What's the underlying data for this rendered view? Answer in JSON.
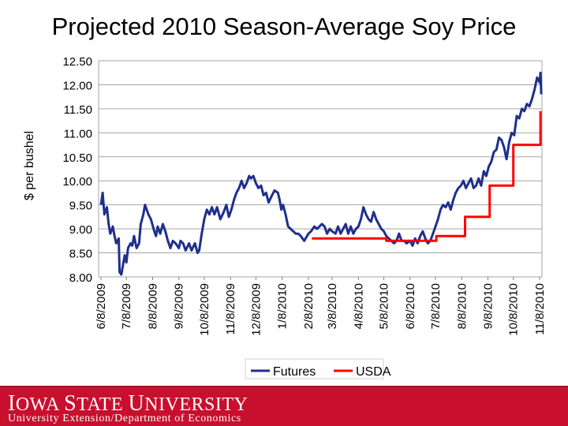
{
  "slide": {
    "title": "Projected 2010 Season-Average Soy Price",
    "footer_logo_word1_cap": "I",
    "footer_logo_word1_rest": "OWA",
    "footer_logo_word2_cap": "S",
    "footer_logo_word2_rest": "TATE",
    "footer_logo_word3_cap": "U",
    "footer_logo_word3_rest": "NIVERSITY",
    "footer_subtitle": "University Extension/Department of Economics",
    "footer_color": "#c8102e"
  },
  "chart_data": {
    "type": "line",
    "title": "Projected 2010 Season-Average Soy Price",
    "ylabel": "$ per bushel",
    "xlabel": "",
    "ylim": [
      8.0,
      12.5
    ],
    "yticks": [
      "8.00",
      "8.50",
      "9.00",
      "9.50",
      "10.00",
      "10.50",
      "11.00",
      "11.50",
      "12.00",
      "12.50"
    ],
    "xticks": [
      "6/8/2009",
      "7/8/2009",
      "8/8/2009",
      "9/8/2009",
      "10/8/2009",
      "11/8/2009",
      "12/8/2009",
      "1/8/2010",
      "2/8/2010",
      "3/8/2010",
      "4/8/2010",
      "5/8/2010",
      "6/8/2010",
      "7/8/2010",
      "8/8/2010",
      "9/8/2010",
      "10/8/2010",
      "11/8/2010"
    ],
    "grid": true,
    "legend_position": "bottom",
    "series": [
      {
        "name": "Futures",
        "color": "#1f2f8c",
        "points": [
          [
            "6/8/2009",
            9.5
          ],
          [
            "6/10/2009",
            9.75
          ],
          [
            "6/12/2009",
            9.3
          ],
          [
            "6/15/2009",
            9.45
          ],
          [
            "6/17/2009",
            9.1
          ],
          [
            "6/19/2009",
            8.9
          ],
          [
            "6/22/2009",
            9.05
          ],
          [
            "6/24/2009",
            8.85
          ],
          [
            "6/26/2009",
            8.7
          ],
          [
            "6/29/2009",
            8.8
          ],
          [
            "6/30/2009",
            8.1
          ],
          [
            "7/2/2009",
            8.05
          ],
          [
            "7/6/2009",
            8.45
          ],
          [
            "7/8/2009",
            8.3
          ],
          [
            "7/10/2009",
            8.6
          ],
          [
            "7/13/2009",
            8.7
          ],
          [
            "7/15/2009",
            8.65
          ],
          [
            "7/17/2009",
            8.85
          ],
          [
            "7/20/2009",
            8.6
          ],
          [
            "7/23/2009",
            8.7
          ],
          [
            "7/25/2009",
            9.1
          ],
          [
            "7/28/2009",
            9.3
          ],
          [
            "7/30/2009",
            9.5
          ],
          [
            "8/3/2009",
            9.3
          ],
          [
            "8/6/2009",
            9.2
          ],
          [
            "8/10/2009",
            8.95
          ],
          [
            "8/12/2009",
            8.85
          ],
          [
            "8/14/2009",
            9.05
          ],
          [
            "8/17/2009",
            8.9
          ],
          [
            "8/20/2009",
            9.1
          ],
          [
            "8/23/2009",
            8.95
          ],
          [
            "8/26/2009",
            8.75
          ],
          [
            "8/29/2009",
            8.6
          ],
          [
            "9/1/2009",
            8.75
          ],
          [
            "9/4/2009",
            8.7
          ],
          [
            "9/8/2009",
            8.6
          ],
          [
            "9/10/2009",
            8.75
          ],
          [
            "9/13/2009",
            8.7
          ],
          [
            "9/16/2009",
            8.55
          ],
          [
            "9/20/2009",
            8.7
          ],
          [
            "9/23/2009",
            8.55
          ],
          [
            "9/27/2009",
            8.7
          ],
          [
            "9/30/2009",
            8.5
          ],
          [
            "10/2/2009",
            8.55
          ],
          [
            "10/5/2009",
            8.9
          ],
          [
            "10/8/2009",
            9.2
          ],
          [
            "10/11/2009",
            9.4
          ],
          [
            "10/14/2009",
            9.3
          ],
          [
            "10/17/2009",
            9.45
          ],
          [
            "10/20/2009",
            9.3
          ],
          [
            "10/23/2009",
            9.45
          ],
          [
            "10/27/2009",
            9.2
          ],
          [
            "10/31/2009",
            9.35
          ],
          [
            "11/3/2009",
            9.5
          ],
          [
            "11/6/2009",
            9.25
          ],
          [
            "11/9/2009",
            9.4
          ],
          [
            "11/12/2009",
            9.6
          ],
          [
            "11/15/2009",
            9.75
          ],
          [
            "11/18/2009",
            9.85
          ],
          [
            "11/21/2009",
            10.0
          ],
          [
            "11/24/2009",
            9.85
          ],
          [
            "11/27/2009",
            9.95
          ],
          [
            "11/30/2009",
            10.1
          ],
          [
            "12/2/2009",
            10.05
          ],
          [
            "12/5/2009",
            10.1
          ],
          [
            "12/8/2009",
            9.95
          ],
          [
            "12/11/2009",
            9.85
          ],
          [
            "12/14/2009",
            9.9
          ],
          [
            "12/17/2009",
            9.7
          ],
          [
            "12/20/2009",
            9.75
          ],
          [
            "12/23/2009",
            9.55
          ],
          [
            "12/27/2009",
            9.7
          ],
          [
            "12/30/2009",
            9.8
          ],
          [
            "1/3/2010",
            9.75
          ],
          [
            "1/5/2010",
            9.6
          ],
          [
            "1/7/2010",
            9.4
          ],
          [
            "1/9/2010",
            9.5
          ],
          [
            "1/12/2010",
            9.3
          ],
          [
            "1/15/2010",
            9.05
          ],
          [
            "1/18/2010",
            9.0
          ],
          [
            "1/21/2010",
            8.95
          ],
          [
            "1/24/2010",
            8.9
          ],
          [
            "1/27/2010",
            8.9
          ],
          [
            "1/30/2010",
            8.85
          ],
          [
            "2/3/2010",
            8.75
          ],
          [
            "2/8/2010",
            8.9
          ],
          [
            "2/11/2010",
            8.95
          ],
          [
            "2/15/2010",
            9.05
          ],
          [
            "2/18/2010",
            9.0
          ],
          [
            "2/21/2010",
            9.05
          ],
          [
            "2/24/2010",
            9.1
          ],
          [
            "2/27/2010",
            9.05
          ],
          [
            "3/2/2010",
            8.9
          ],
          [
            "3/5/2010",
            9.0
          ],
          [
            "3/8/2010",
            8.95
          ],
          [
            "3/12/2010",
            8.9
          ],
          [
            "3/15/2010",
            9.05
          ],
          [
            "3/18/2010",
            8.9
          ],
          [
            "3/21/2010",
            9.0
          ],
          [
            "3/24/2010",
            9.1
          ],
          [
            "3/27/2010",
            8.9
          ],
          [
            "3/30/2010",
            9.05
          ],
          [
            "4/2/2010",
            8.9
          ],
          [
            "4/5/2010",
            9.0
          ],
          [
            "4/8/2010",
            9.05
          ],
          [
            "4/11/2010",
            9.2
          ],
          [
            "4/14/2010",
            9.45
          ],
          [
            "4/17/2010",
            9.3
          ],
          [
            "4/20/2010",
            9.2
          ],
          [
            "4/23/2010",
            9.15
          ],
          [
            "4/26/2010",
            9.35
          ],
          [
            "4/29/2010",
            9.2
          ],
          [
            "5/2/2010",
            9.1
          ],
          [
            "5/5/2010",
            9.0
          ],
          [
            "5/8/2010",
            8.95
          ],
          [
            "5/11/2010",
            8.85
          ],
          [
            "5/14/2010",
            8.8
          ],
          [
            "5/17/2010",
            8.75
          ],
          [
            "5/20/2010",
            8.7
          ],
          [
            "5/23/2010",
            8.75
          ],
          [
            "5/26/2010",
            8.9
          ],
          [
            "5/29/2010",
            8.75
          ],
          [
            "6/1/2010",
            8.75
          ],
          [
            "6/4/2010",
            8.7
          ],
          [
            "6/8/2010",
            8.75
          ],
          [
            "6/11/2010",
            8.65
          ],
          [
            "6/14/2010",
            8.8
          ],
          [
            "6/17/2010",
            8.7
          ],
          [
            "6/20/2010",
            8.85
          ],
          [
            "6/23/2010",
            8.95
          ],
          [
            "6/26/2010",
            8.8
          ],
          [
            "6/29/2010",
            8.7
          ],
          [
            "7/2/2010",
            8.75
          ],
          [
            "7/5/2010",
            8.9
          ],
          [
            "7/8/2010",
            9.05
          ],
          [
            "7/11/2010",
            9.2
          ],
          [
            "7/14/2010",
            9.4
          ],
          [
            "7/17/2010",
            9.5
          ],
          [
            "7/20/2010",
            9.45
          ],
          [
            "7/23/2010",
            9.55
          ],
          [
            "7/26/2010",
            9.4
          ],
          [
            "7/29/2010",
            9.6
          ],
          [
            "8/1/2010",
            9.75
          ],
          [
            "8/4/2010",
            9.85
          ],
          [
            "8/7/2010",
            9.9
          ],
          [
            "8/10/2010",
            10.0
          ],
          [
            "8/13/2010",
            9.85
          ],
          [
            "8/16/2010",
            9.95
          ],
          [
            "8/19/2010",
            10.05
          ],
          [
            "8/22/2010",
            9.85
          ],
          [
            "8/25/2010",
            9.9
          ],
          [
            "8/28/2010",
            10.05
          ],
          [
            "8/31/2010",
            9.9
          ],
          [
            "9/3/2010",
            10.2
          ],
          [
            "9/6/2010",
            10.1
          ],
          [
            "9/9/2010",
            10.3
          ],
          [
            "9/12/2010",
            10.4
          ],
          [
            "9/15/2010",
            10.6
          ],
          [
            "9/18/2010",
            10.65
          ],
          [
            "9/21/2010",
            10.9
          ],
          [
            "9/24/2010",
            10.85
          ],
          [
            "9/27/2010",
            10.7
          ],
          [
            "9/30/2010",
            10.45
          ],
          [
            "10/3/2010",
            10.8
          ],
          [
            "10/6/2010",
            11.0
          ],
          [
            "10/9/2010",
            10.95
          ],
          [
            "10/12/2010",
            11.35
          ],
          [
            "10/15/2010",
            11.3
          ],
          [
            "10/18/2010",
            11.5
          ],
          [
            "10/21/2010",
            11.45
          ],
          [
            "10/24/2010",
            11.6
          ],
          [
            "10/27/2010",
            11.55
          ],
          [
            "10/30/2010",
            11.7
          ],
          [
            "11/2/2010",
            11.9
          ],
          [
            "11/5/2010",
            12.15
          ],
          [
            "11/8/2010",
            12.05
          ],
          [
            "11/9/2010",
            12.25
          ],
          [
            "11/10/2010",
            11.8
          ]
        ]
      },
      {
        "name": "USDA",
        "color": "#ff0000",
        "points": [
          [
            "2/12/2010",
            8.8
          ],
          [
            "5/11/2010",
            8.8
          ],
          [
            "5/11/2010",
            8.75
          ],
          [
            "7/9/2010",
            8.75
          ],
          [
            "7/9/2010",
            8.85
          ],
          [
            "8/12/2010",
            8.85
          ],
          [
            "8/12/2010",
            9.25
          ],
          [
            "9/10/2010",
            9.25
          ],
          [
            "9/10/2010",
            9.9
          ],
          [
            "10/8/2010",
            9.9
          ],
          [
            "10/8/2010",
            10.75
          ],
          [
            "11/9/2010",
            10.75
          ],
          [
            "11/9/2010",
            11.45
          ]
        ]
      }
    ]
  }
}
